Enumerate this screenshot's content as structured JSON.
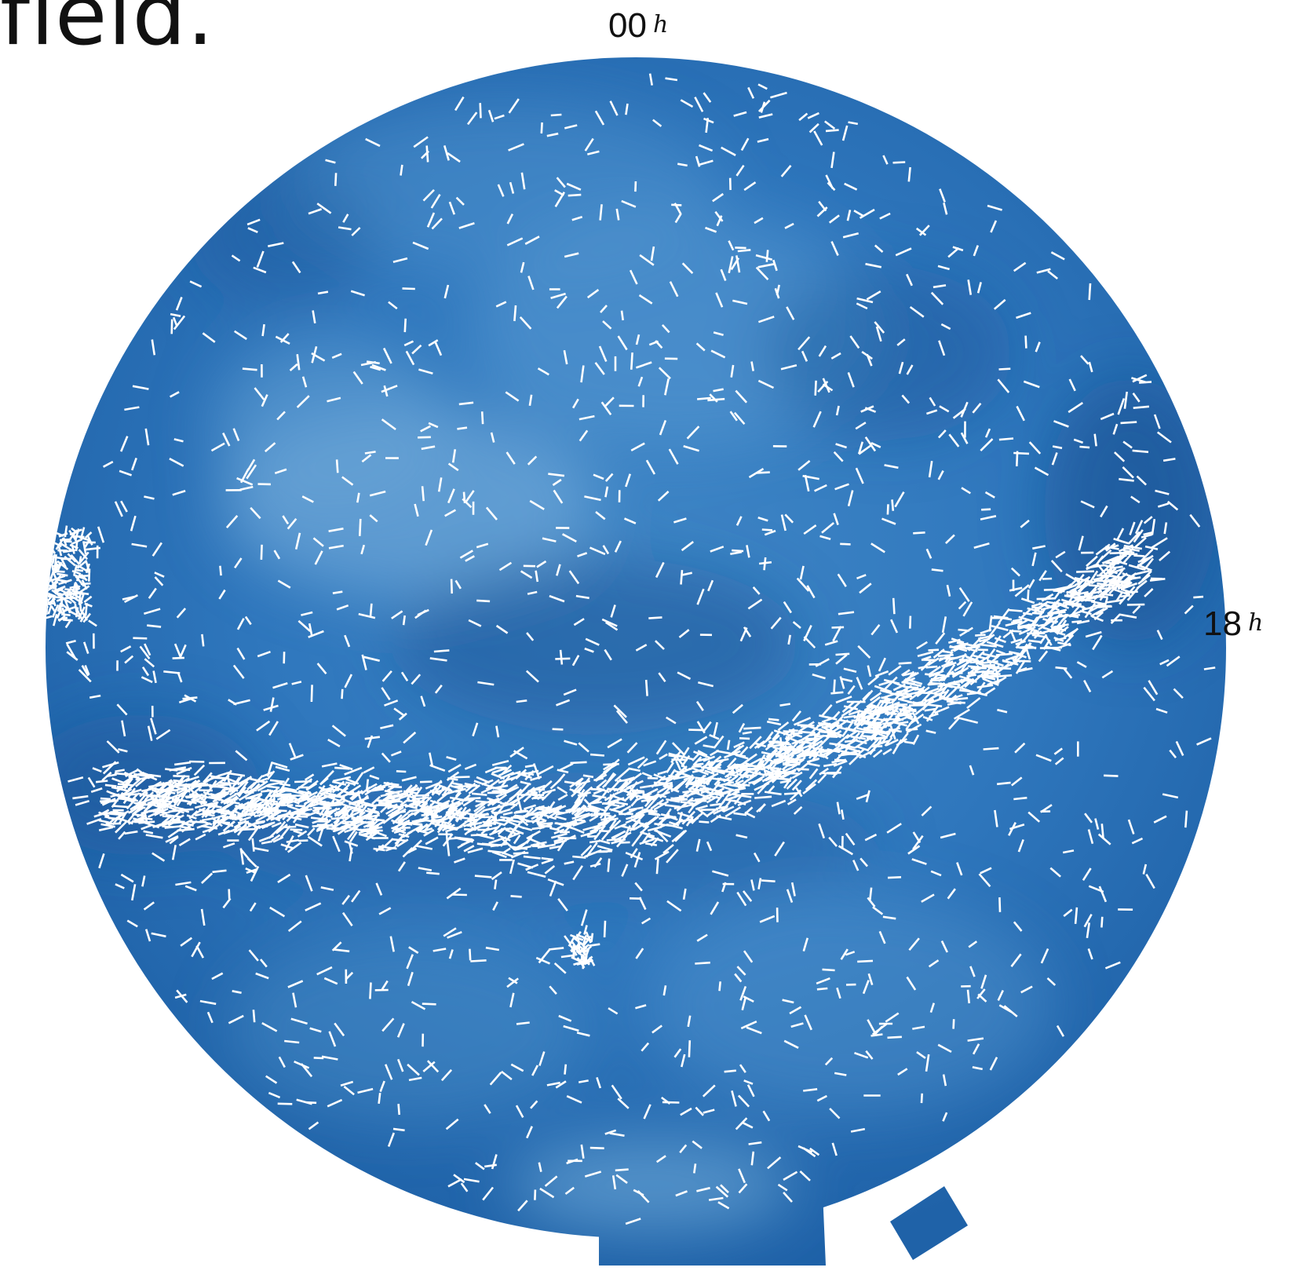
{
  "heading_fragment": "field.",
  "axis_labels": {
    "top": {
      "value": "00",
      "unit": "h"
    },
    "right": {
      "value": "18",
      "unit": "h"
    }
  },
  "colors": {
    "sky_base": "#2a6fb8",
    "sky_light": "#5b9bd1",
    "sky_dark": "#144f93",
    "vectors": "#ffffff",
    "text": "#111111"
  }
}
